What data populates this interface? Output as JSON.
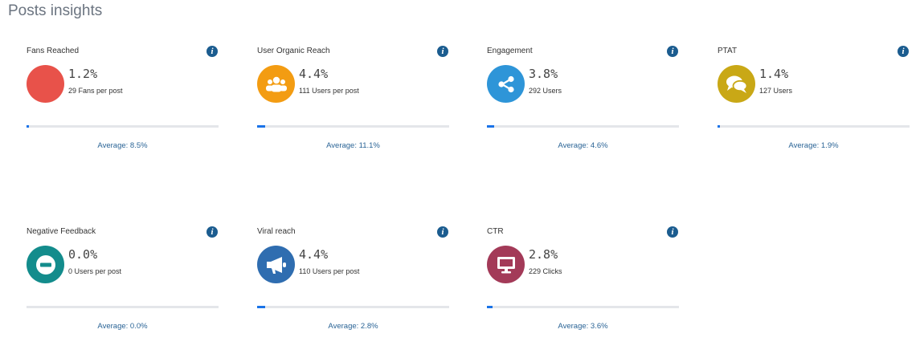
{
  "header": {
    "title": "Posts insights"
  },
  "colors": {
    "progress_fill": "#1a73e8",
    "average_text": "#2a6496",
    "info_icon": "#1b5c8f"
  },
  "cards": [
    {
      "title": "Fans Reached",
      "value": "1.2%",
      "sub": "29 Fans per post",
      "average": "Average: 8.5%",
      "progress_percent": 1.2,
      "icon": "solid-circle",
      "icon_color": "#e8524a"
    },
    {
      "title": "User Organic Reach",
      "value": "4.4%",
      "sub": "111 Users per post",
      "average": "Average: 11.1%",
      "progress_percent": 4.4,
      "icon": "users-group-icon",
      "icon_color": "#f39c12"
    },
    {
      "title": "Engagement",
      "value": "3.8%",
      "sub": "292 Users",
      "average": "Average: 4.6%",
      "progress_percent": 3.8,
      "icon": "share-icon",
      "icon_color": "#2e95d8"
    },
    {
      "title": "PTAT",
      "value": "1.4%",
      "sub": "127 Users",
      "average": "Average: 1.9%",
      "progress_percent": 1.4,
      "icon": "chat-bubbles-icon",
      "icon_color": "#c9a816"
    },
    {
      "title": "Negative Feedback",
      "value": "0.0%",
      "sub": "0 Users per post",
      "average": "Average: 0.0%",
      "progress_percent": 0.0,
      "icon": "minus-circle-icon",
      "icon_color": "#138c8c"
    },
    {
      "title": "Viral reach",
      "value": "4.4%",
      "sub": "110 Users per post",
      "average": "Average: 2.8%",
      "progress_percent": 4.4,
      "icon": "megaphone-icon",
      "icon_color": "#2f6db0"
    },
    {
      "title": "CTR",
      "value": "2.8%",
      "sub": "229 Clicks",
      "average": "Average: 3.6%",
      "progress_percent": 2.8,
      "icon": "monitor-icon",
      "icon_color": "#a33a58"
    }
  ]
}
